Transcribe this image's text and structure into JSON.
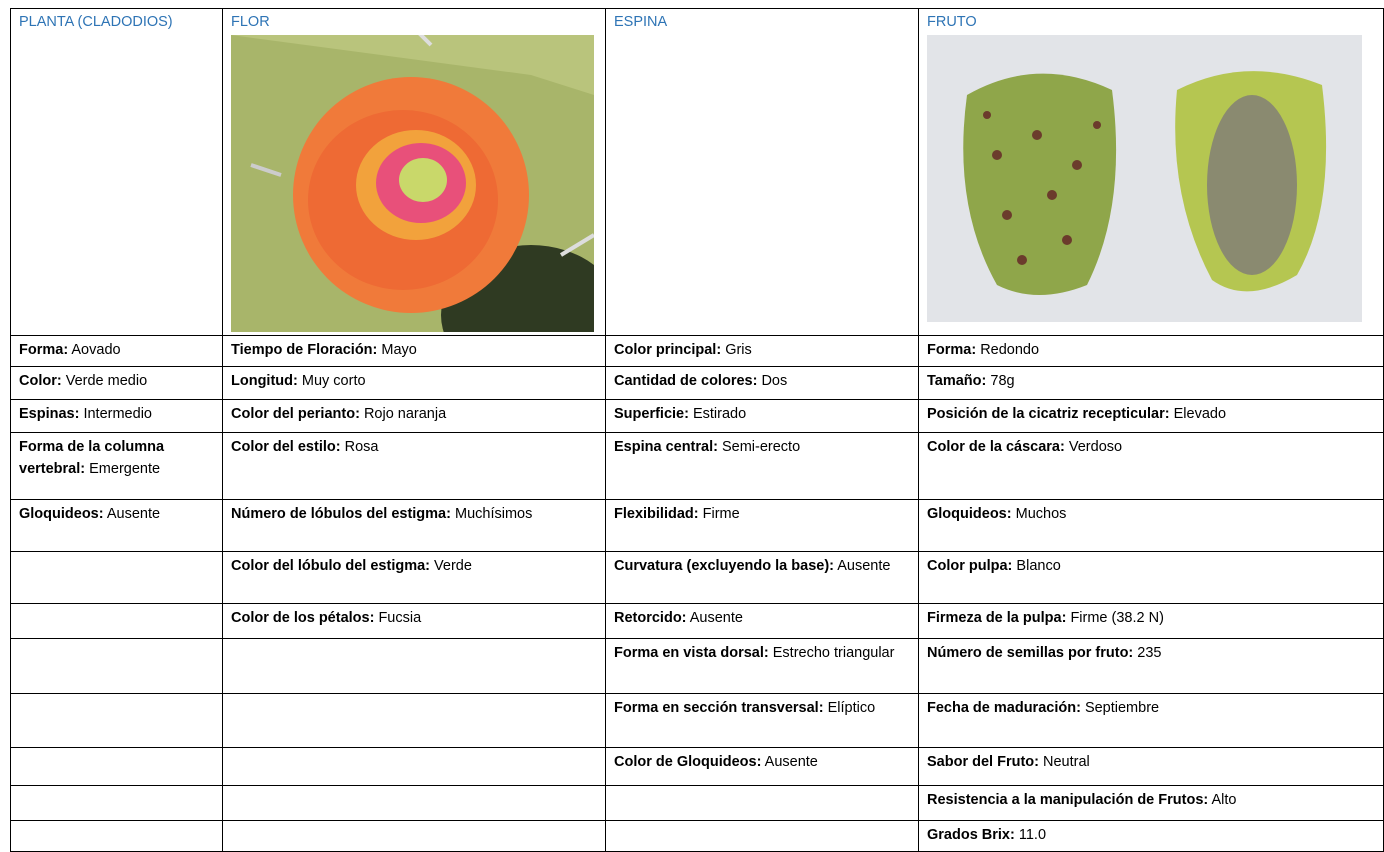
{
  "table": {
    "columns": [
      "PLANTA (CLADODIOS)",
      "FLOR",
      "ESPINA",
      "FRUTO"
    ],
    "rows": [
      [
        {
          "label": "Forma:",
          "value": "Aovado"
        },
        {
          "label": "Tiempo de Floración:",
          "value": "Mayo"
        },
        {
          "label": "Color principal:",
          "value": "Gris"
        },
        {
          "label": "Forma:",
          "value": "Redondo"
        }
      ],
      [
        {
          "label": "Color:",
          "value": "Verde medio"
        },
        {
          "label": "Longitud:",
          "value": "Muy corto"
        },
        {
          "label": "Cantidad de colores:",
          "value": "Dos"
        },
        {
          "label": "Tamaño:",
          "value": "78g"
        }
      ],
      [
        {
          "label": "Espinas:",
          "value": "Intermedio"
        },
        {
          "label": "Color del perianto:",
          "value": "Rojo naranja"
        },
        {
          "label": "Superficie:",
          "value": "Estirado"
        },
        {
          "label": "Posición de la cicatriz recepticular:",
          "value": "Elevado"
        }
      ],
      [
        {
          "label": "Forma de la columna vertebral:",
          "value": "Emergente"
        },
        {
          "label": "Color del estilo:",
          "value": "Rosa"
        },
        {
          "label": "Espina central:",
          "value": "Semi-erecto"
        },
        {
          "label": "Color de la cáscara:",
          "value": "Verdoso"
        }
      ],
      [
        {
          "label": "Gloquideos:",
          "value": "Ausente"
        },
        {
          "label": "Número de lóbulos del estigma:",
          "value": "Muchísimos"
        },
        {
          "label": "Flexibilidad:",
          "value": "Firme"
        },
        {
          "label": "Gloquideos:",
          "value": "Muchos"
        }
      ],
      [
        null,
        {
          "label": "Color del lóbulo del estigma:",
          "value": "Verde"
        },
        {
          "label": "Curvatura (excluyendo la base):",
          "value": "Ausente"
        },
        {
          "label": "Color pulpa:",
          "value": "Blanco"
        }
      ],
      [
        null,
        {
          "label": "Color de los pétalos:",
          "value": "Fucsia"
        },
        {
          "label": "Retorcido:",
          "value": "Ausente"
        },
        {
          "label": "Firmeza de la pulpa:",
          "value": "Firme (38.2 N)"
        }
      ],
      [
        null,
        null,
        {
          "label": "Forma en vista dorsal:",
          "value": "Estrecho triangular"
        },
        {
          "label": "Número de semillas por fruto:",
          "value": "235"
        }
      ],
      [
        null,
        null,
        {
          "label": "Forma en sección transversal:",
          "value": "Elíptico"
        },
        {
          "label": "Fecha de maduración:",
          "value": "Septiembre"
        }
      ],
      [
        null,
        null,
        {
          "label": "Color de Gloquideos:",
          "value": "Ausente"
        },
        {
          "label": "Sabor del Fruto:",
          "value": "Neutral"
        }
      ],
      [
        null,
        null,
        null,
        {
          "label": "Resistencia a la manipulación de Frutos:",
          "value": "Alto"
        }
      ],
      [
        null,
        null,
        null,
        {
          "label": "Grados Brix:",
          "value": "11.0"
        }
      ]
    ]
  }
}
